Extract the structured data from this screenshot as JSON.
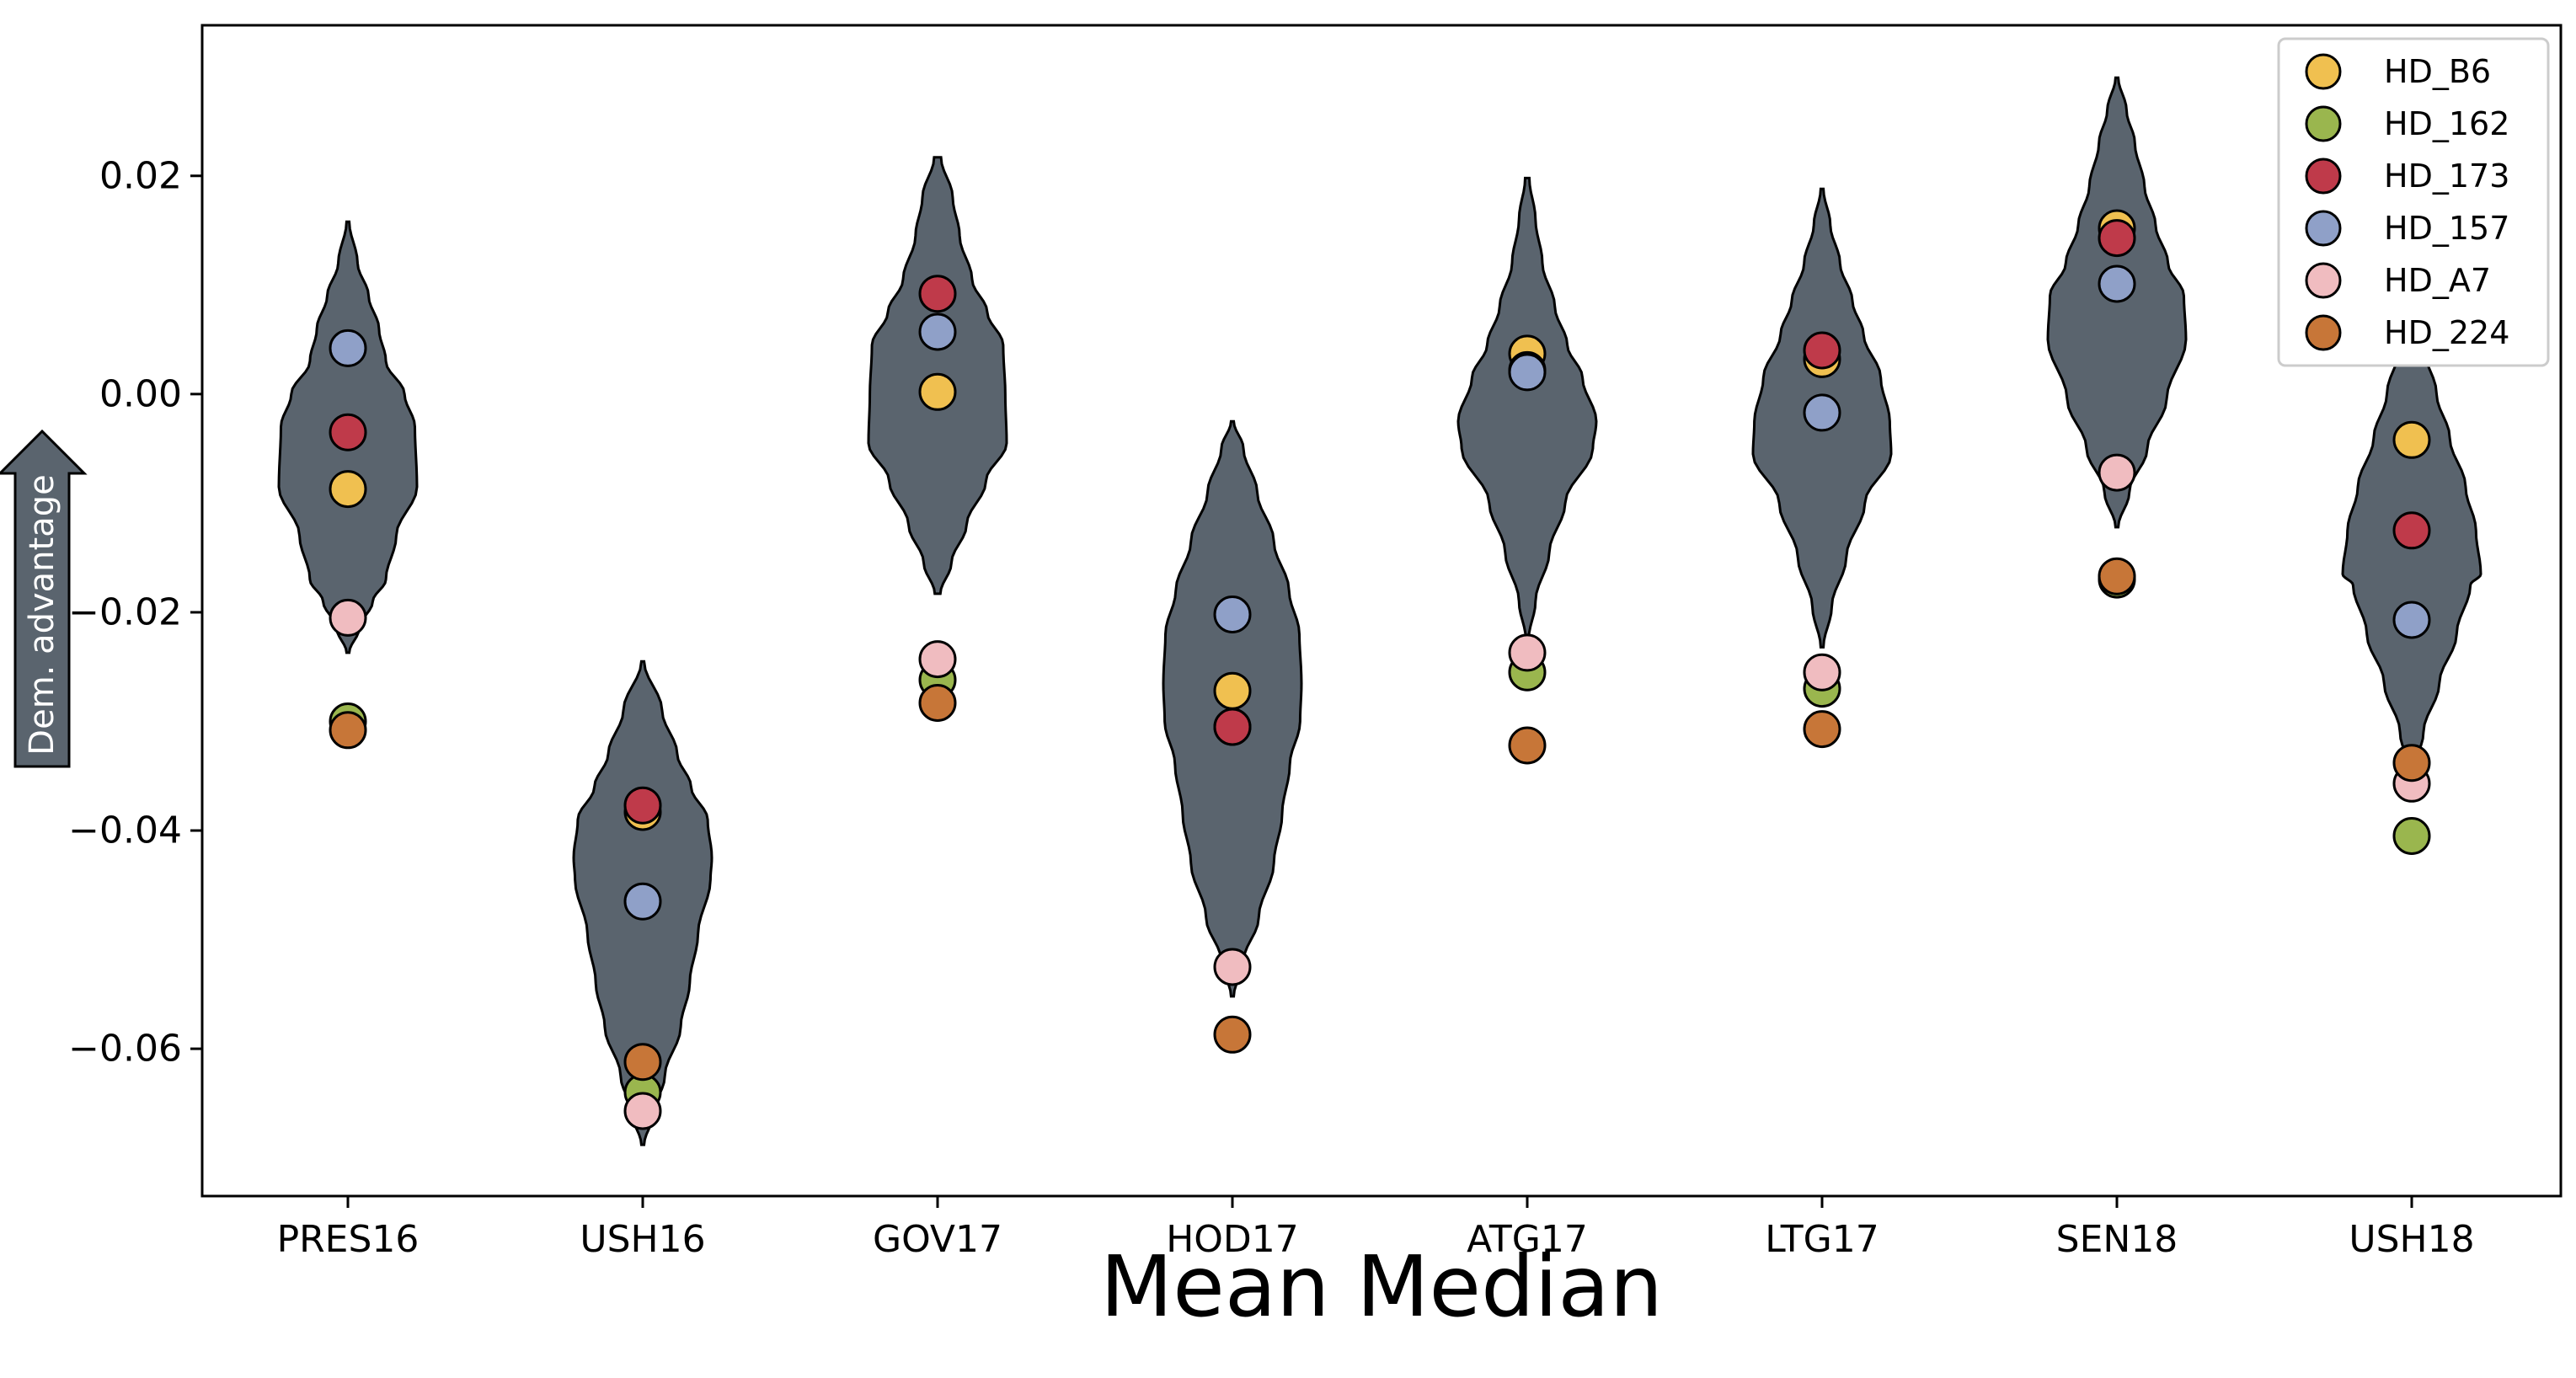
{
  "chart_data": {
    "type": "violin",
    "title": "Mean Median",
    "ylabel": "Dem. advantage",
    "ylim": [
      -0.0735,
      0.0338
    ],
    "yticks": [
      0.02,
      0.0,
      -0.02,
      -0.04,
      -0.06
    ],
    "ytick_labels": [
      "0.02",
      "0.00",
      "−0.02",
      "−0.04",
      "−0.06"
    ],
    "categories": [
      "PRES16",
      "USH16",
      "GOV17",
      "HOD17",
      "ATG17",
      "LTG17",
      "SEN18",
      "USH18"
    ],
    "legend_position": "top-right",
    "violin_color": "#5a646e",
    "violins": [
      {
        "category": "PRES16",
        "min": -0.0237,
        "max": 0.0158,
        "profile": [
          [
            -0.0237,
            0.02
          ],
          [
            -0.0215,
            0.16
          ],
          [
            -0.019,
            0.36
          ],
          [
            -0.017,
            0.55
          ],
          [
            -0.013,
            0.7
          ],
          [
            -0.0085,
            1.0
          ],
          [
            -0.003,
            0.97
          ],
          [
            0.0,
            0.82
          ],
          [
            0.003,
            0.55
          ],
          [
            0.006,
            0.45
          ],
          [
            0.009,
            0.3
          ],
          [
            0.012,
            0.14
          ],
          [
            0.0158,
            0.02
          ]
        ]
      },
      {
        "category": "USH16",
        "min": -0.0688,
        "max": -0.0245,
        "profile": [
          [
            -0.0688,
            0.02
          ],
          [
            -0.066,
            0.15
          ],
          [
            -0.0625,
            0.32
          ],
          [
            -0.058,
            0.55
          ],
          [
            -0.054,
            0.68
          ],
          [
            -0.0495,
            0.8
          ],
          [
            -0.0445,
            0.98
          ],
          [
            -0.0425,
            1.0
          ],
          [
            -0.039,
            0.94
          ],
          [
            -0.036,
            0.7
          ],
          [
            -0.033,
            0.5
          ],
          [
            -0.029,
            0.28
          ],
          [
            -0.0245,
            0.02
          ]
        ]
      },
      {
        "category": "GOV17",
        "min": -0.0183,
        "max": 0.0217,
        "profile": [
          [
            -0.0183,
            0.04
          ],
          [
            -0.0155,
            0.2
          ],
          [
            -0.012,
            0.42
          ],
          [
            -0.008,
            0.7
          ],
          [
            -0.0045,
            1.0
          ],
          [
            0.0,
            0.98
          ],
          [
            0.0045,
            0.95
          ],
          [
            0.0075,
            0.72
          ],
          [
            0.0105,
            0.5
          ],
          [
            0.0145,
            0.32
          ],
          [
            0.018,
            0.22
          ],
          [
            0.0217,
            0.05
          ]
        ]
      },
      {
        "category": "HOD17",
        "min": -0.0552,
        "max": -0.0025,
        "profile": [
          [
            -0.0552,
            0.02
          ],
          [
            -0.052,
            0.16
          ],
          [
            -0.048,
            0.38
          ],
          [
            -0.043,
            0.6
          ],
          [
            -0.0385,
            0.72
          ],
          [
            -0.034,
            0.83
          ],
          [
            -0.03,
            0.98
          ],
          [
            -0.0265,
            1.0
          ],
          [
            -0.022,
            0.97
          ],
          [
            -0.018,
            0.82
          ],
          [
            -0.0135,
            0.6
          ],
          [
            -0.009,
            0.36
          ],
          [
            -0.005,
            0.16
          ],
          [
            -0.0025,
            0.02
          ]
        ]
      },
      {
        "category": "ATG17",
        "min": -0.0225,
        "max": 0.0198,
        "profile": [
          [
            -0.0225,
            0.02
          ],
          [
            -0.019,
            0.12
          ],
          [
            -0.0145,
            0.32
          ],
          [
            -0.01,
            0.55
          ],
          [
            -0.005,
            0.95
          ],
          [
            -0.0025,
            1.0
          ],
          [
            0.0015,
            0.8
          ],
          [
            0.0045,
            0.58
          ],
          [
            0.008,
            0.4
          ],
          [
            0.012,
            0.22
          ],
          [
            0.016,
            0.12
          ],
          [
            0.0198,
            0.03
          ]
        ]
      },
      {
        "category": "LTG17",
        "min": -0.0232,
        "max": 0.0188,
        "profile": [
          [
            -0.0232,
            0.02
          ],
          [
            -0.0195,
            0.14
          ],
          [
            -0.015,
            0.35
          ],
          [
            -0.01,
            0.62
          ],
          [
            -0.0055,
            1.0
          ],
          [
            -0.0025,
            0.98
          ],
          [
            0.0015,
            0.85
          ],
          [
            0.0055,
            0.6
          ],
          [
            0.0085,
            0.44
          ],
          [
            0.012,
            0.26
          ],
          [
            0.0155,
            0.12
          ],
          [
            0.0188,
            0.02
          ]
        ]
      },
      {
        "category": "SEN18",
        "min": -0.0122,
        "max": 0.029,
        "profile": [
          [
            -0.0122,
            0.02
          ],
          [
            -0.009,
            0.18
          ],
          [
            -0.005,
            0.44
          ],
          [
            -0.0005,
            0.72
          ],
          [
            0.005,
            1.0
          ],
          [
            0.009,
            0.97
          ],
          [
            0.012,
            0.74
          ],
          [
            0.0155,
            0.56
          ],
          [
            0.019,
            0.4
          ],
          [
            0.023,
            0.26
          ],
          [
            0.026,
            0.14
          ],
          [
            0.029,
            0.02
          ]
        ]
      },
      {
        "category": "USH18",
        "min": -0.0345,
        "max": 0.0088,
        "profile": [
          [
            -0.0345,
            0.03
          ],
          [
            -0.031,
            0.17
          ],
          [
            -0.0265,
            0.4
          ],
          [
            -0.022,
            0.65
          ],
          [
            -0.0175,
            0.85
          ],
          [
            -0.0165,
            1.0
          ],
          [
            -0.0125,
            0.93
          ],
          [
            -0.0085,
            0.78
          ],
          [
            -0.004,
            0.55
          ],
          [
            0.0,
            0.36
          ],
          [
            0.0045,
            0.16
          ],
          [
            0.0088,
            0.02
          ]
        ]
      }
    ],
    "series": [
      {
        "name": "HD_B6",
        "color": "#f0c050",
        "values": [
          -0.0087,
          -0.0383,
          0.0002,
          -0.0272,
          0.0037,
          0.0032,
          0.0152,
          -0.0042
        ]
      },
      {
        "name": "HD_162",
        "color": "#9ab64e",
        "values": [
          -0.03,
          -0.064,
          -0.0262,
          -0.0305,
          -0.0255,
          -0.027,
          -0.017,
          -0.0405
        ]
      },
      {
        "name": "HD_173",
        "color": "#bf3a4a",
        "values": [
          -0.0035,
          -0.0377,
          0.0092,
          -0.0305,
          0.0022,
          0.004,
          0.0143,
          -0.0125
        ]
      },
      {
        "name": "HD_157",
        "color": "#8fa0c8",
        "values": [
          0.0042,
          -0.0465,
          0.0057,
          -0.0202,
          0.002,
          -0.0017,
          0.0101,
          -0.0207
        ]
      },
      {
        "name": "HD_A7",
        "color": "#f0bcc0",
        "values": [
          -0.0205,
          -0.0657,
          -0.0243,
          -0.0525,
          -0.0237,
          -0.0255,
          -0.0072,
          -0.0357
        ]
      },
      {
        "name": "HD_224",
        "color": "#c77638",
        "values": [
          -0.0308,
          -0.0612,
          -0.0283,
          -0.0587,
          -0.0322,
          -0.0307,
          -0.0167,
          -0.0338
        ]
      }
    ]
  }
}
